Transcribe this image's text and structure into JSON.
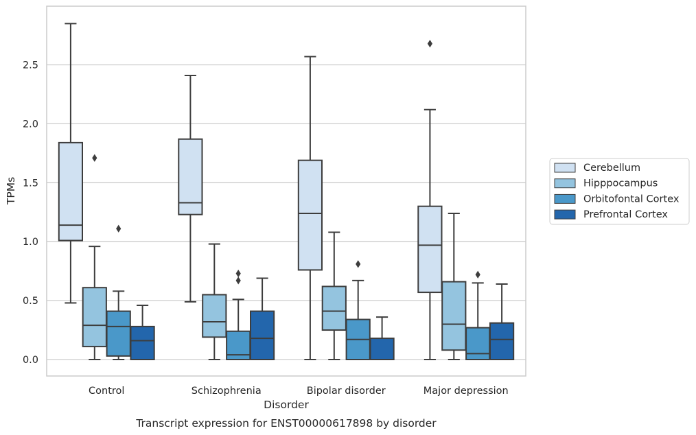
{
  "chart_data": {
    "type": "boxplot",
    "title": "Transcript expression for ENST00000617898 by disorder",
    "xlabel": "Disorder",
    "ylabel": "TPMs",
    "ylim": [
      -0.14,
      2.99
    ],
    "yticks": [
      0.0,
      0.5,
      1.0,
      1.5,
      2.0,
      2.5
    ],
    "ytick_labels": [
      "0.0",
      "0.5",
      "1.0",
      "1.5",
      "2.0",
      "2.5"
    ],
    "grid": "horizontal",
    "legend_position": "right",
    "categories": [
      "Control",
      "Schizophrenia",
      "Bipolar disorder",
      "Major depression"
    ],
    "series": [
      {
        "name": "Cerebellum",
        "color": "#d0e1f2",
        "boxes": [
          {
            "whislo": 0.48,
            "q1": 1.01,
            "med": 1.14,
            "q3": 1.84,
            "whishi": 2.85,
            "fliers": []
          },
          {
            "whislo": 0.49,
            "q1": 1.23,
            "med": 1.33,
            "q3": 1.87,
            "whishi": 2.41,
            "fliers": []
          },
          {
            "whislo": 0.0,
            "q1": 0.76,
            "med": 1.24,
            "q3": 1.69,
            "whishi": 2.57,
            "fliers": []
          },
          {
            "whislo": 0.0,
            "q1": 0.57,
            "med": 0.97,
            "q3": 1.3,
            "whishi": 2.12,
            "fliers": [
              2.68
            ]
          }
        ]
      },
      {
        "name": "Hipppocampus",
        "color": "#94c4df",
        "boxes": [
          {
            "whislo": 0.0,
            "q1": 0.11,
            "med": 0.29,
            "q3": 0.61,
            "whishi": 0.96,
            "fliers": [
              1.71
            ]
          },
          {
            "whislo": 0.0,
            "q1": 0.19,
            "med": 0.32,
            "q3": 0.55,
            "whishi": 0.98,
            "fliers": []
          },
          {
            "whislo": 0.0,
            "q1": 0.25,
            "med": 0.41,
            "q3": 0.62,
            "whishi": 1.08,
            "fliers": []
          },
          {
            "whislo": 0.0,
            "q1": 0.08,
            "med": 0.3,
            "q3": 0.66,
            "whishi": 1.24,
            "fliers": []
          }
        ]
      },
      {
        "name": "Orbitofontal Cortex",
        "color": "#4a98c9",
        "boxes": [
          {
            "whislo": 0.0,
            "q1": 0.03,
            "med": 0.28,
            "q3": 0.41,
            "whishi": 0.58,
            "fliers": [
              1.11
            ]
          },
          {
            "whislo": 0.0,
            "q1": 0.0,
            "med": 0.04,
            "q3": 0.24,
            "whishi": 0.51,
            "fliers": [
              0.67,
              0.73
            ]
          },
          {
            "whislo": 0.0,
            "q1": 0.0,
            "med": 0.17,
            "q3": 0.34,
            "whishi": 0.67,
            "fliers": [
              0.81
            ]
          },
          {
            "whislo": 0.0,
            "q1": 0.0,
            "med": 0.05,
            "q3": 0.27,
            "whishi": 0.65,
            "fliers": [
              0.72
            ]
          }
        ]
      },
      {
        "name": "Prefrontal Cortex",
        "color": "#2366ac",
        "boxes": [
          {
            "whislo": 0.0,
            "q1": 0.0,
            "med": 0.16,
            "q3": 0.28,
            "whishi": 0.46,
            "fliers": []
          },
          {
            "whislo": 0.0,
            "q1": 0.0,
            "med": 0.18,
            "q3": 0.41,
            "whishi": 0.69,
            "fliers": []
          },
          {
            "whislo": 0.0,
            "q1": 0.0,
            "med": 0.0,
            "q3": 0.18,
            "whishi": 0.36,
            "fliers": []
          },
          {
            "whislo": 0.0,
            "q1": 0.0,
            "med": 0.17,
            "q3": 0.31,
            "whishi": 0.64,
            "fliers": []
          }
        ]
      }
    ]
  }
}
